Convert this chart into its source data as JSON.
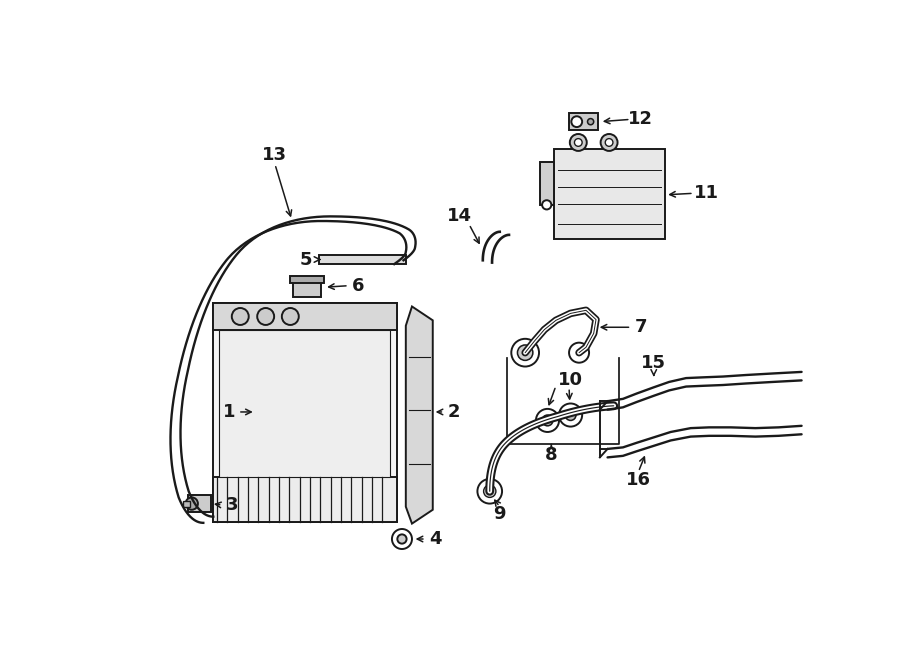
{
  "bg_color": "#ffffff",
  "line_color": "#1a1a1a",
  "fig_width": 9.0,
  "fig_height": 6.61
}
